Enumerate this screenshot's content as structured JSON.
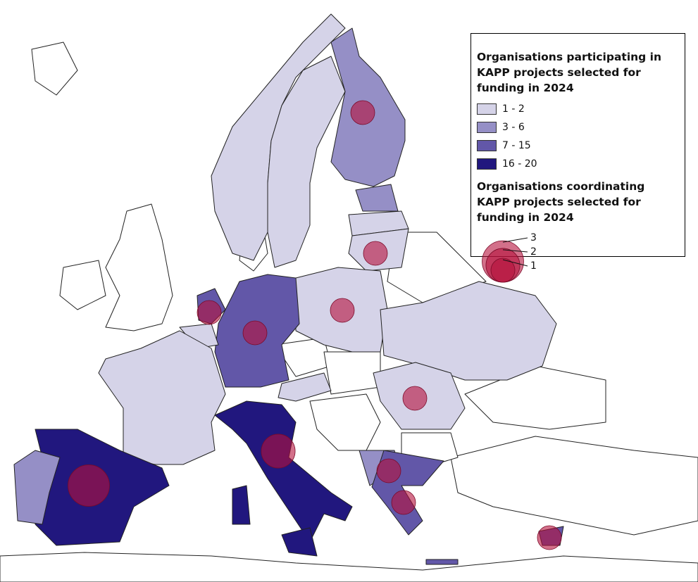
{
  "legend": {
    "participating": {
      "title": "Organisations participating in KAPP projects selected for funding in 2024",
      "classes": [
        {
          "label": "1 - 2",
          "color": "#d5d3e8"
        },
        {
          "label": "3 - 6",
          "color": "#958fc6"
        },
        {
          "label": "7 - 15",
          "color": "#6257a8"
        },
        {
          "label": "16 - 20",
          "color": "#21177e"
        }
      ]
    },
    "coordinating": {
      "title": "Organisations coordinating KAPP projects selected for funding in 2024",
      "sizes": [
        3,
        2,
        1
      ],
      "color": "#b5103c"
    }
  },
  "coordinators": {
    "values": [
      1,
      1,
      1,
      1,
      1,
      1,
      2,
      3,
      1,
      1,
      1
    ]
  }
}
